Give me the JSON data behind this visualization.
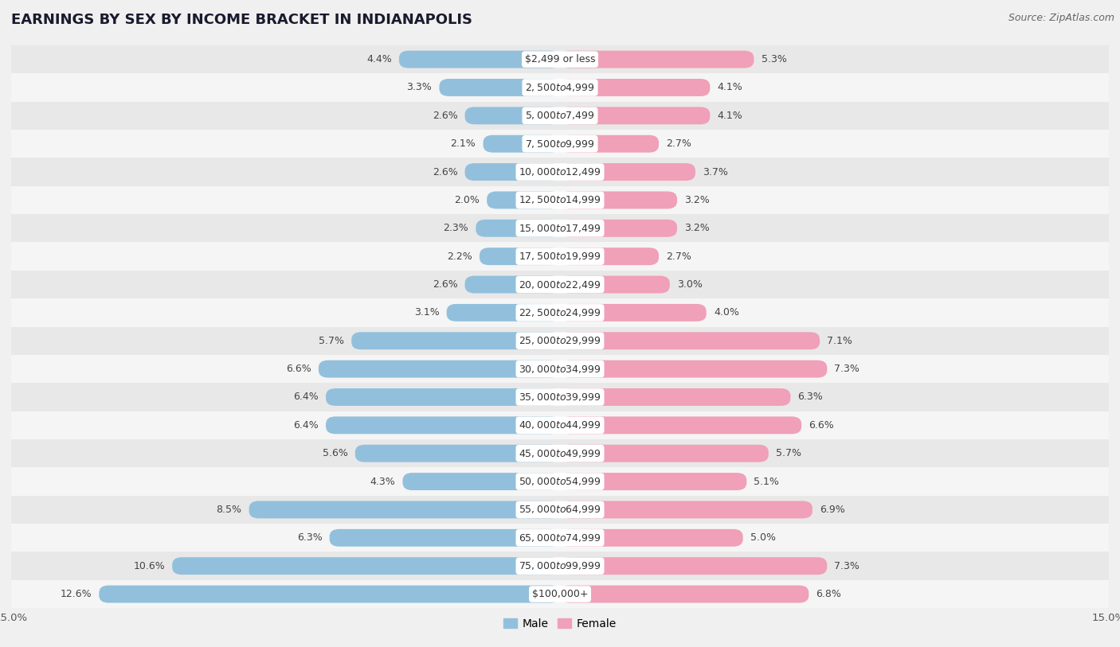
{
  "title": "EARNINGS BY SEX BY INCOME BRACKET IN INDIANAPOLIS",
  "source": "Source: ZipAtlas.com",
  "categories": [
    "$2,499 or less",
    "$2,500 to $4,999",
    "$5,000 to $7,499",
    "$7,500 to $9,999",
    "$10,000 to $12,499",
    "$12,500 to $14,999",
    "$15,000 to $17,499",
    "$17,500 to $19,999",
    "$20,000 to $22,499",
    "$22,500 to $24,999",
    "$25,000 to $29,999",
    "$30,000 to $34,999",
    "$35,000 to $39,999",
    "$40,000 to $44,999",
    "$45,000 to $49,999",
    "$50,000 to $54,999",
    "$55,000 to $64,999",
    "$65,000 to $74,999",
    "$75,000 to $99,999",
    "$100,000+"
  ],
  "male_values": [
    4.4,
    3.3,
    2.6,
    2.1,
    2.6,
    2.0,
    2.3,
    2.2,
    2.6,
    3.1,
    5.7,
    6.6,
    6.4,
    6.4,
    5.6,
    4.3,
    8.5,
    6.3,
    10.6,
    12.6
  ],
  "female_values": [
    5.3,
    4.1,
    4.1,
    2.7,
    3.7,
    3.2,
    3.2,
    2.7,
    3.0,
    4.0,
    7.1,
    7.3,
    6.3,
    6.6,
    5.7,
    5.1,
    6.9,
    5.0,
    7.3,
    6.8
  ],
  "male_color": "#92c0dc",
  "female_color": "#f0a0b8",
  "row_colors": [
    "#e8e8e8",
    "#f5f5f5"
  ],
  "background_color": "#f0f0f0",
  "xlim": 15.0,
  "label_fontsize": 9.0,
  "cat_fontsize": 9.0,
  "title_fontsize": 13,
  "source_fontsize": 9,
  "bar_height": 0.62,
  "legend_male": "Male",
  "legend_female": "Female"
}
